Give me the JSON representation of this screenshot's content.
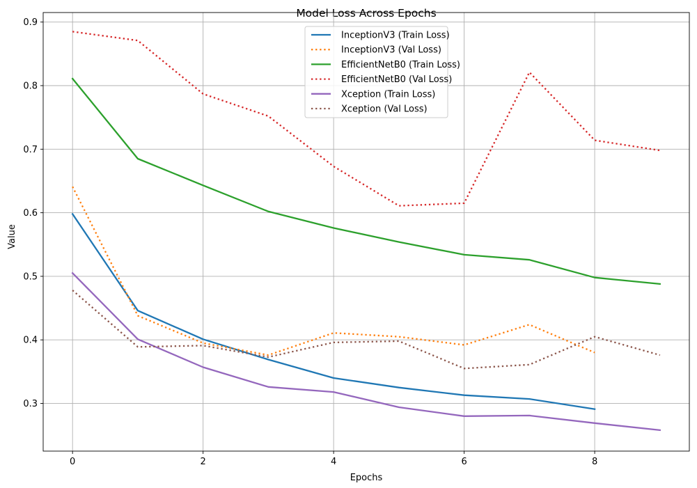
{
  "chart_data": {
    "type": "line",
    "title": "Model Loss Across Epochs",
    "xlabel": "Epochs",
    "ylabel": "Value",
    "xlim": [
      -0.45,
      9.45
    ],
    "ylim": [
      0.225,
      0.915
    ],
    "xticks": [
      0,
      2,
      4,
      6,
      8
    ],
    "yticks": [
      0.3,
      0.4,
      0.5,
      0.6,
      0.7,
      0.8,
      0.9
    ],
    "xtick_labels": [
      "0",
      "2",
      "4",
      "6",
      "8"
    ],
    "ytick_labels": [
      "0.3",
      "0.4",
      "0.5",
      "0.6",
      "0.7",
      "0.8",
      "0.9"
    ],
    "grid": true,
    "legend_position": "top-center",
    "series": [
      {
        "name": "InceptionV3 (Train Loss)",
        "color": "#1f77b4",
        "style": "solid",
        "x": [
          0,
          1,
          2,
          3,
          4,
          5,
          6,
          7,
          8
        ],
        "values": [
          0.598,
          0.446,
          0.401,
          0.369,
          0.34,
          0.325,
          0.313,
          0.307,
          0.291
        ]
      },
      {
        "name": "InceptionV3 (Val Loss)",
        "color": "#ff7f0e",
        "style": "dotted",
        "x": [
          0,
          1,
          2,
          3,
          4,
          5,
          6,
          7,
          8
        ],
        "values": [
          0.641,
          0.438,
          0.395,
          0.376,
          0.411,
          0.405,
          0.392,
          0.424,
          0.38
        ]
      },
      {
        "name": "EfficientNetB0 (Train Loss)",
        "color": "#2ca02c",
        "style": "solid",
        "x": [
          0,
          1,
          2,
          3,
          4,
          5,
          6,
          7,
          8,
          9
        ],
        "values": [
          0.811,
          0.685,
          0.643,
          0.602,
          0.576,
          0.554,
          0.534,
          0.526,
          0.498,
          0.488
        ]
      },
      {
        "name": "EfficientNetB0 (Val Loss)",
        "color": "#d62728",
        "style": "dotted",
        "x": [
          0,
          1,
          2,
          3,
          4,
          5,
          6,
          7,
          8,
          9
        ],
        "values": [
          0.885,
          0.871,
          0.787,
          0.752,
          0.673,
          0.611,
          0.615,
          0.821,
          0.714,
          0.698
        ]
      },
      {
        "name": "Xception (Train Loss)",
        "color": "#9467bd",
        "style": "solid",
        "x": [
          0,
          1,
          2,
          3,
          4,
          5,
          6,
          7,
          8,
          9
        ],
        "values": [
          0.505,
          0.401,
          0.357,
          0.326,
          0.318,
          0.294,
          0.28,
          0.281,
          0.269,
          0.258
        ]
      },
      {
        "name": "Xception (Val Loss)",
        "color": "#8c564b",
        "style": "dotted",
        "x": [
          0,
          1,
          2,
          3,
          4,
          5,
          6,
          7,
          8,
          9
        ],
        "values": [
          0.478,
          0.389,
          0.391,
          0.373,
          0.396,
          0.398,
          0.355,
          0.361,
          0.405,
          0.376
        ]
      }
    ]
  }
}
